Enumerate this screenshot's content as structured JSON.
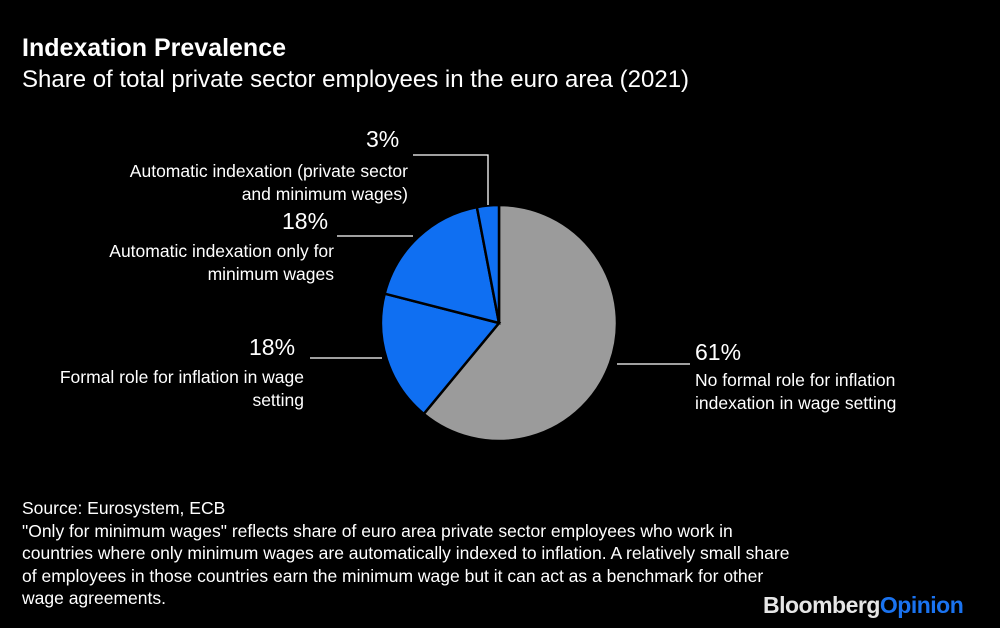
{
  "title": "Indexation Prevalence",
  "subtitle": "Share of total private sector employees in the euro area (2021)",
  "chart_data": {
    "type": "pie",
    "start": "top, clockwise",
    "slices": [
      {
        "label": "No formal role for inflation indexation in wage setting",
        "value": 61,
        "value_label": "61%",
        "color": "#9b9b9b"
      },
      {
        "label": "Formal role for inflation in wage setting",
        "value": 18,
        "value_label": "18%",
        "color": "#0f6ff2"
      },
      {
        "label": "Automatic indexation only for minimum wages",
        "value": 18,
        "value_label": "18%",
        "color": "#0f6ff2"
      },
      {
        "label": "Automatic indexation (private sector and minimum wages)",
        "value": 3,
        "value_label": "3%",
        "color": "#0f6ff2"
      }
    ]
  },
  "footnote": {
    "source": "Source: Eurosystem, ECB",
    "note": "\"Only for minimum wages\" reflects share of euro area private sector employees who work in countries where only minimum wages are automatically indexed to inflation. A relatively small share of employees in those countries earn the minimum wage but it can act as a benchmark for other wage agreements."
  },
  "logo": {
    "part1": "Bloomberg",
    "part2": "Opinion",
    "color1": "#e6e6e6",
    "color2": "#1a73f0"
  }
}
